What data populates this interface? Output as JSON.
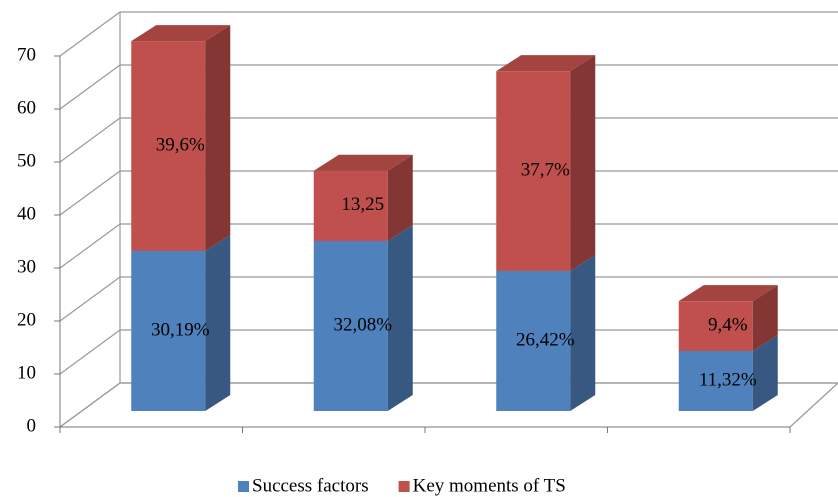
{
  "chart_data": {
    "type": "bar3d_stacked",
    "categories": [
      null,
      null,
      null,
      null
    ],
    "series": [
      {
        "name": "Success factors",
        "color": "#4f81bd",
        "values": [
          30.19,
          32.08,
          26.42,
          11.32
        ],
        "value_labels": [
          "30,19%",
          "32,08%",
          "26,42%",
          "11,32%"
        ]
      },
      {
        "name": "Key moments of TS",
        "color": "#c0504d",
        "values": [
          39.6,
          13.25,
          37.7,
          9.4
        ],
        "value_labels": [
          "39,6%",
          "13,25",
          "37,7%",
          "9,4%"
        ]
      }
    ],
    "ylim": [
      0,
      70
    ],
    "yticks": [
      0,
      10,
      20,
      30,
      40,
      50,
      60,
      70
    ],
    "grid": true,
    "legend": "bottom"
  }
}
